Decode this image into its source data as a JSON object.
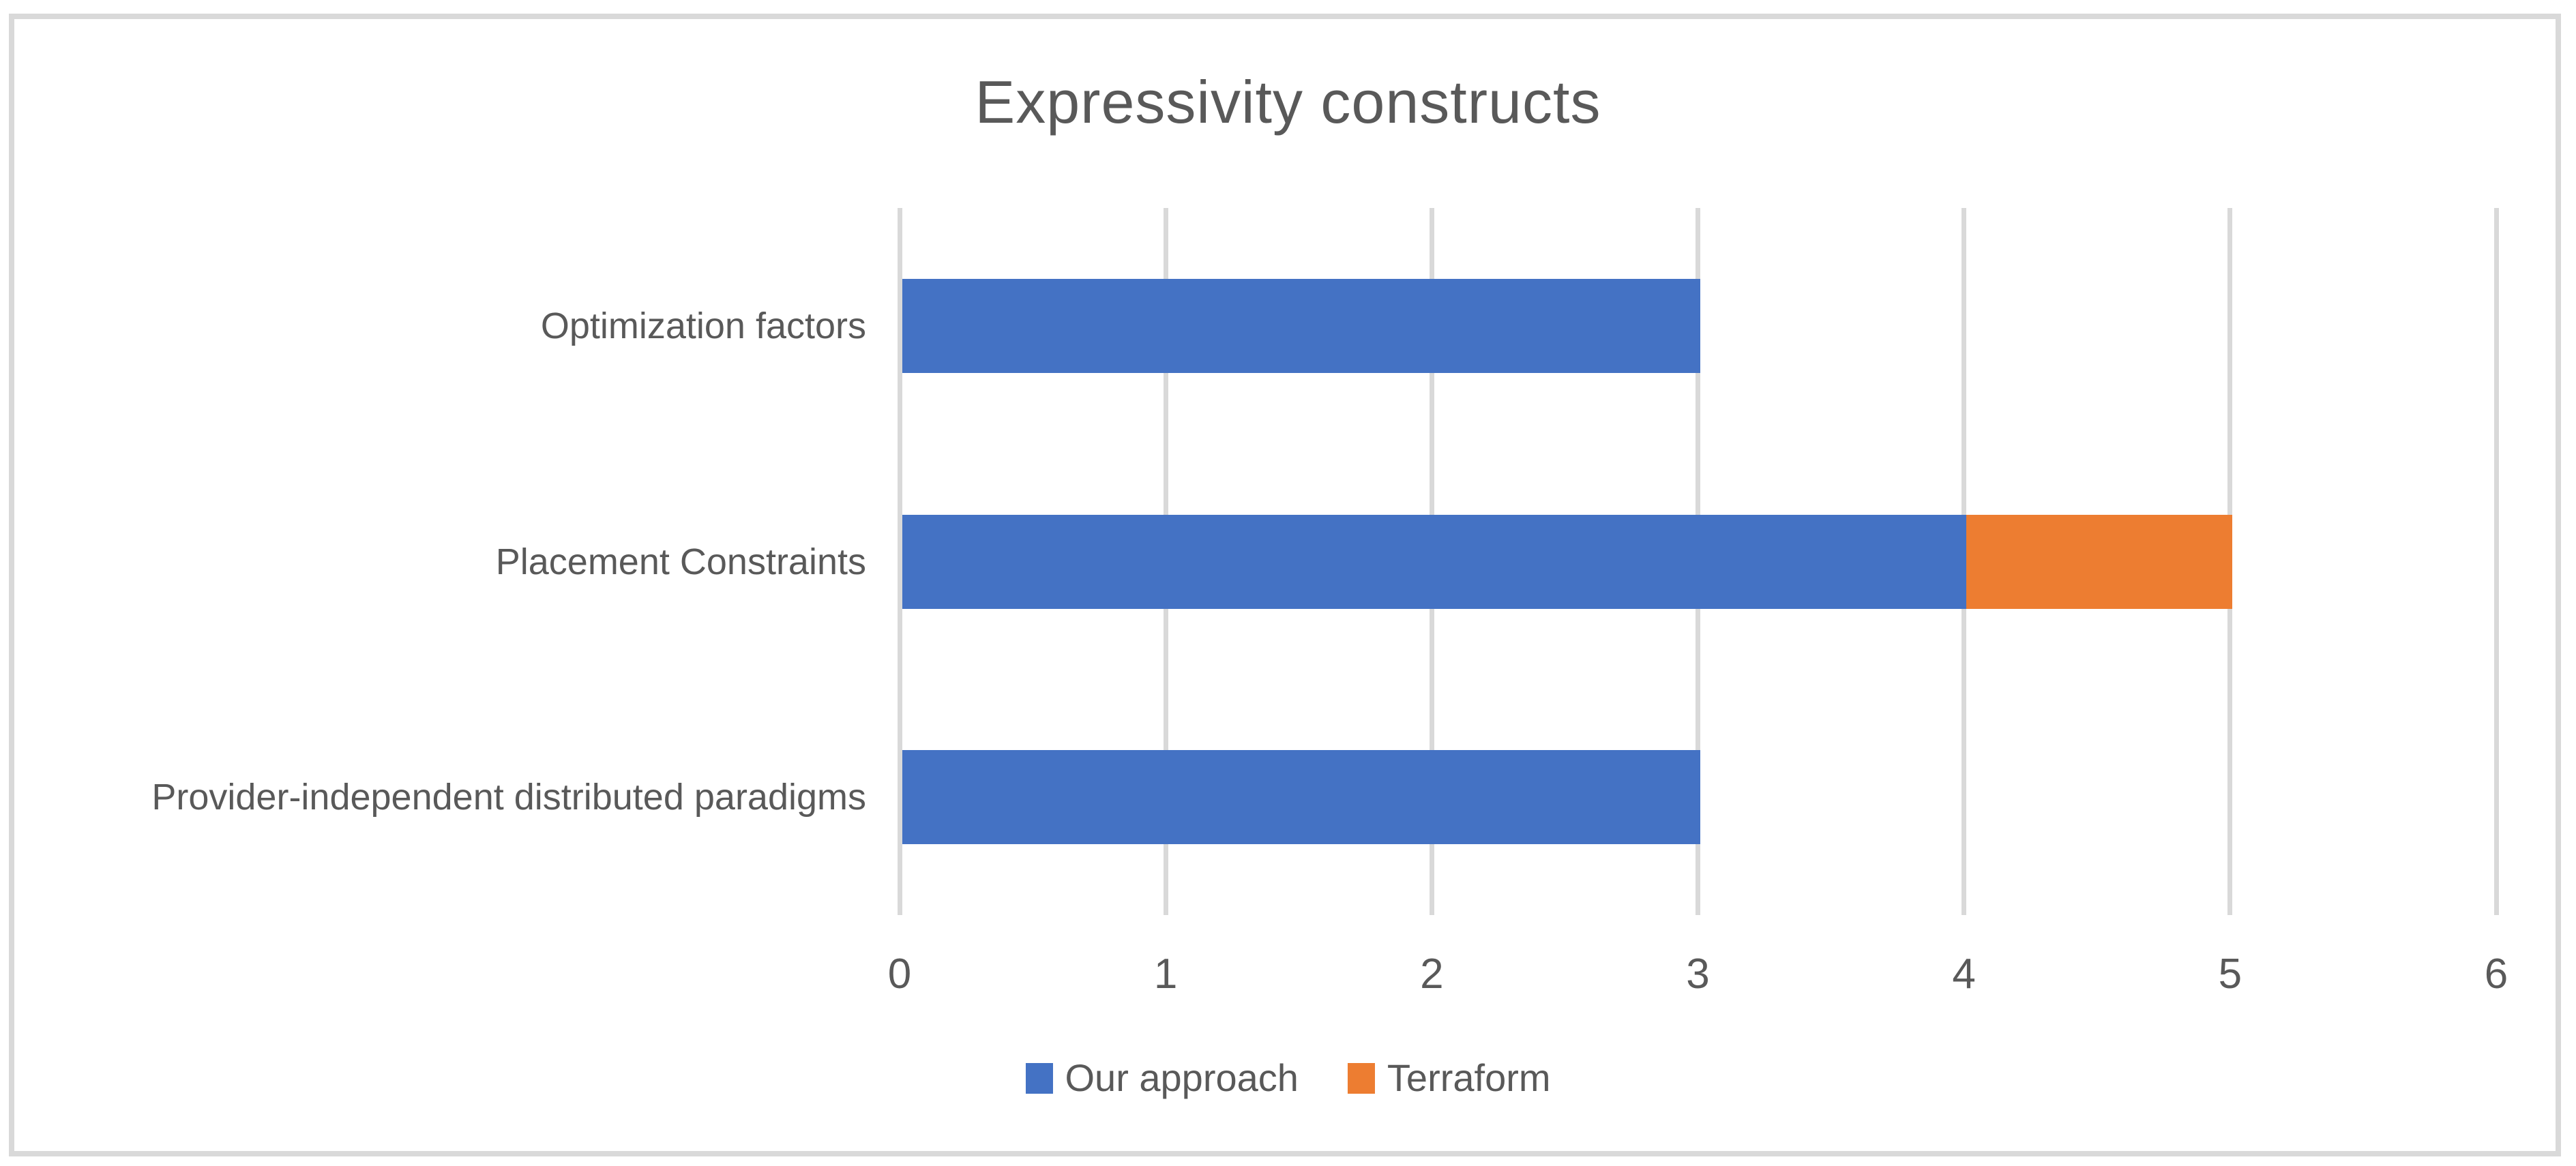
{
  "chart_data": {
    "type": "bar",
    "orientation": "horizontal",
    "stacked": true,
    "title": "Expressivity constructs",
    "categories": [
      "Optimization factors",
      "Placement Constraints",
      "Provider-independent distributed paradigms"
    ],
    "series": [
      {
        "name": "Our approach",
        "color": "#4472C4",
        "values": [
          3,
          4,
          3
        ]
      },
      {
        "name": "Terraform",
        "color": "#ED7D31",
        "values": [
          0,
          1,
          0
        ]
      }
    ],
    "xlim": [
      0,
      6
    ],
    "x_ticks": [
      0,
      1,
      2,
      3,
      4,
      5,
      6
    ],
    "grid": true,
    "legend_position": "bottom"
  },
  "colors": {
    "grid": "#D9D9D9",
    "frame_border": "#D9D9D9",
    "title_text": "#595959",
    "label_text": "#595959"
  }
}
